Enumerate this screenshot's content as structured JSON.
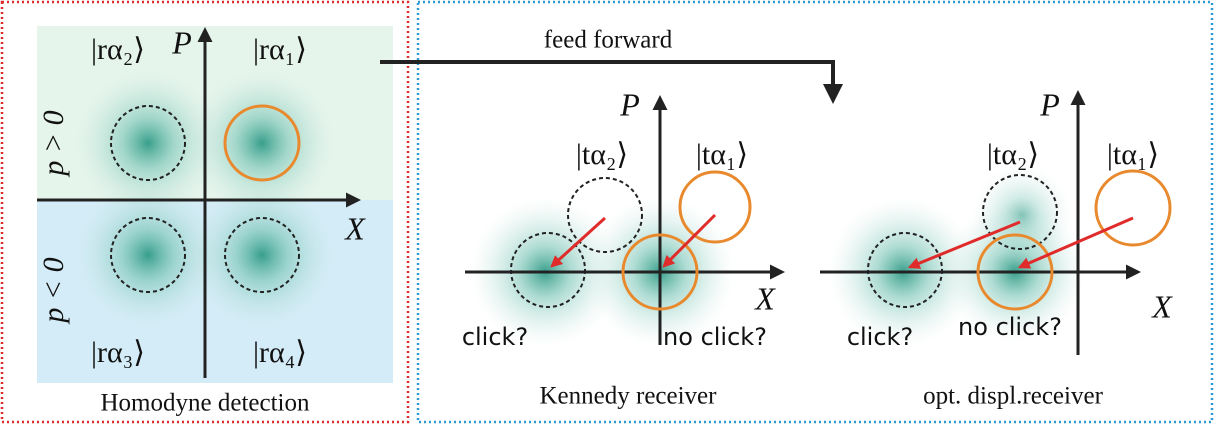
{
  "homodyne": {
    "axis_p": "P",
    "axis_x": "X",
    "states": [
      "|rα₂⟩",
      "|rα₁⟩",
      "|rα₃⟩",
      "|rα₄⟩"
    ],
    "regions": [
      "p > 0",
      "p < 0"
    ],
    "caption": "Homodyne detection"
  },
  "feed_forward": "feed forward",
  "kennedy": {
    "axis_p": "P",
    "axis_x": "X",
    "states": [
      "|tα₂⟩",
      "|tα₁⟩"
    ],
    "outcomes": [
      "click?",
      "no click?"
    ],
    "caption": "Kennedy receiver"
  },
  "optimal": {
    "axis_p": "P",
    "axis_x": "X",
    "states": [
      "|tα₂⟩",
      "|tα₁⟩"
    ],
    "outcomes": [
      "click?",
      "no click?"
    ],
    "caption": "opt. displ.receiver"
  }
}
